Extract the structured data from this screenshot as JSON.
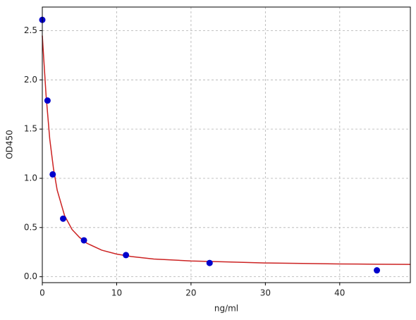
{
  "chart_data": {
    "type": "scatter",
    "x_label": "ng/ml",
    "y_label": "OD450",
    "xlim": [
      0,
      49.5
    ],
    "ylim": [
      -0.06,
      2.74
    ],
    "xticks": [
      0,
      10,
      20,
      30,
      40
    ],
    "yticks": [
      {
        "value": 0,
        "label": "0.0"
      },
      0.5,
      {
        "value": 1,
        "label": "1.0"
      },
      1.5,
      {
        "value": 2,
        "label": "2.0"
      },
      2.5
    ],
    "grid": true,
    "series": [
      {
        "type": "line",
        "color": "#cc2222",
        "x": [
          0,
          0.5,
          1,
          1.5,
          2,
          3,
          4,
          5,
          6,
          8,
          10,
          12,
          15,
          20,
          25,
          30,
          35,
          40,
          45,
          49.5
        ],
        "y": [
          2.45,
          1.85,
          1.4,
          1.1,
          0.88,
          0.62,
          0.48,
          0.4,
          0.34,
          0.27,
          0.23,
          0.205,
          0.18,
          0.16,
          0.15,
          0.14,
          0.135,
          0.13,
          0.127,
          0.125
        ]
      },
      {
        "type": "scatter",
        "color": "#0000cc",
        "x": [
          0,
          0.7,
          1.4,
          2.8,
          5.6,
          11.25,
          22.5,
          45
        ],
        "y": [
          2.61,
          1.79,
          1.04,
          0.59,
          0.37,
          0.22,
          0.14,
          0.065
        ]
      }
    ]
  }
}
